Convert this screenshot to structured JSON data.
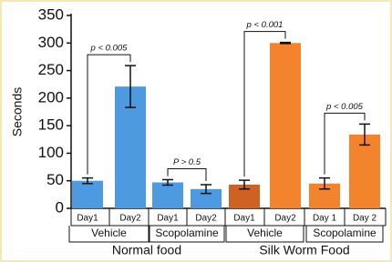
{
  "chart_data": {
    "type": "bar",
    "y_label": "Seconds",
    "ylim": [
      0,
      350
    ],
    "yticks": [
      0,
      50,
      100,
      150,
      200,
      250,
      300,
      350
    ],
    "groups": [
      {
        "name": "Normal food",
        "subgroups": [
          {
            "name": "Vehicle",
            "categories": [
              "Day1",
              "Day2"
            ],
            "values": [
              50,
              221
            ],
            "errors": [
              5,
              38
            ],
            "colors": [
              "#4e9ae0",
              "#4e9ae0"
            ]
          },
          {
            "name": "Scopolamine",
            "categories": [
              "Day1",
              "Day2"
            ],
            "values": [
              47,
              35
            ],
            "errors": [
              5,
              8
            ],
            "colors": [
              "#4e9ae0",
              "#4e9ae0"
            ]
          }
        ]
      },
      {
        "name": "Silk Worm Food",
        "subgroups": [
          {
            "name": "Vehicle",
            "categories": [
              "Day1",
              "Day2"
            ],
            "values": [
              43,
              300
            ],
            "errors": [
              8,
              1
            ],
            "colors": [
              "#cf6222",
              "#f4832e"
            ]
          },
          {
            "name": "Scopolamine",
            "categories": [
              "Day 1",
              "Day 2"
            ],
            "values": [
              45,
              134
            ],
            "errors": [
              10,
              19
            ],
            "colors": [
              "#f4832e",
              "#f4832e"
            ]
          }
        ]
      }
    ],
    "annotations": [
      "p < 0.005",
      "P > 0.5",
      "p < 0.001",
      "p < 0.005"
    ]
  }
}
